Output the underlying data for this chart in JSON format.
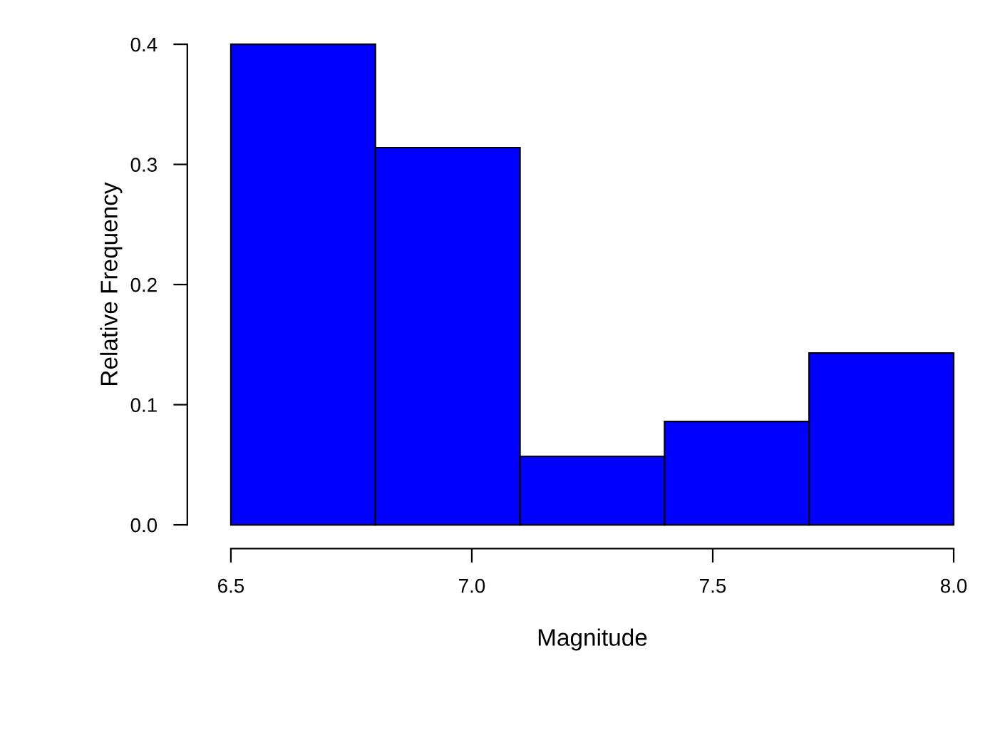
{
  "chart_data": {
    "type": "histogram",
    "xlabel": "Magnitude",
    "ylabel": "Relative Frequency",
    "bins": [
      6.5,
      6.8,
      7.1,
      7.4,
      7.7,
      8.0
    ],
    "values": [
      0.4,
      0.314,
      0.057,
      0.086,
      0.143
    ],
    "color": "#0000ff",
    "xlim": [
      6.5,
      8.0
    ],
    "ylim": [
      0.0,
      0.4
    ],
    "xticks": [
      6.5,
      {
        "value": 7.0,
        "label": "7.0"
      },
      7.5,
      {
        "value": 8.0,
        "label": "8.0"
      }
    ],
    "yticks": [
      {
        "value": 0.0,
        "label": "0.0"
      },
      0.1,
      0.2,
      0.3,
      0.4
    ],
    "grid": false,
    "legend": false
  }
}
